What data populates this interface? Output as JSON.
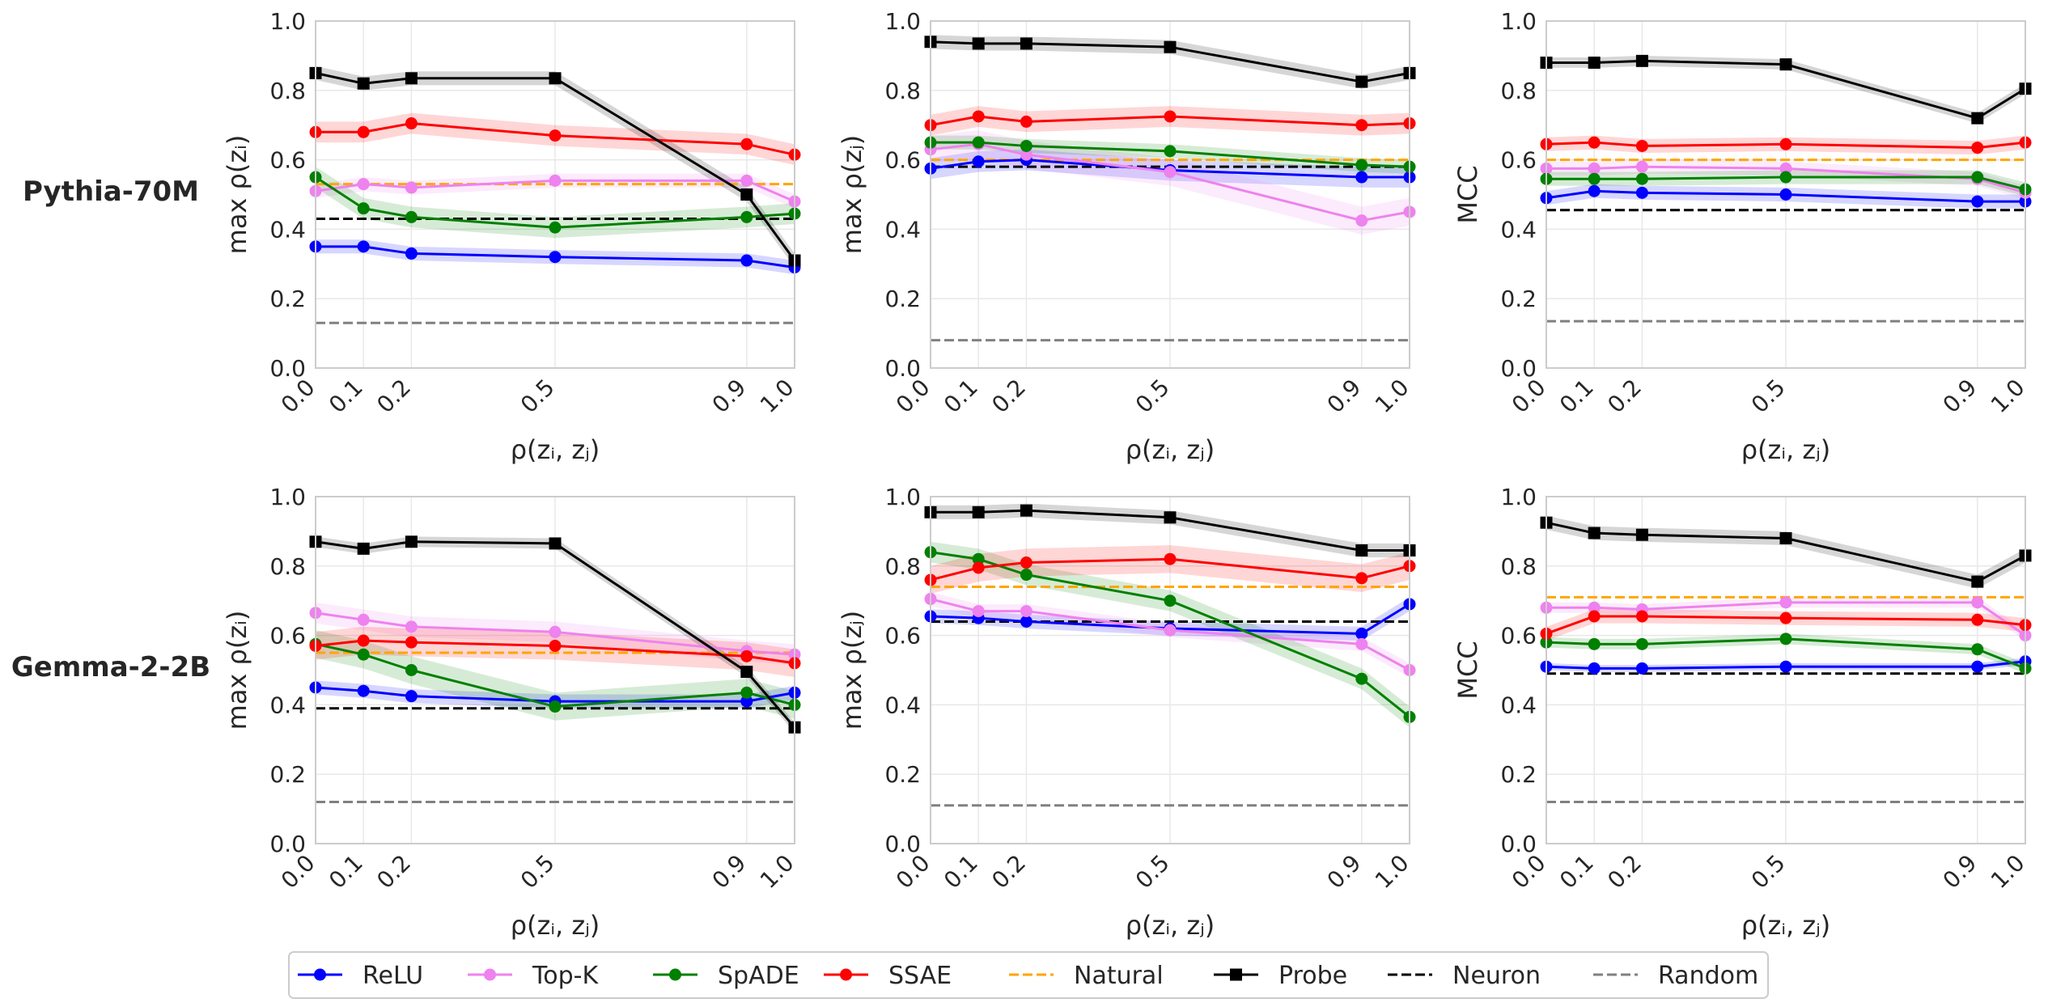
{
  "row_labels": [
    "Pythia-70M",
    "Gemma-2-2B"
  ],
  "legend": [
    {
      "name": "ReLU",
      "color": "#0000ff",
      "style": "solid",
      "marker": "circle"
    },
    {
      "name": "Top-K",
      "color": "#ee82ee",
      "style": "solid",
      "marker": "circle"
    },
    {
      "name": "SpADE",
      "color": "#008000",
      "style": "solid",
      "marker": "circle"
    },
    {
      "name": "SSAE",
      "color": "#ff0000",
      "style": "solid",
      "marker": "circle"
    },
    {
      "name": "Natural",
      "color": "#ffa500",
      "style": "dashed",
      "marker": "none"
    },
    {
      "name": "Probe",
      "color": "#000000",
      "style": "solid",
      "marker": "square"
    },
    {
      "name": "Neuron",
      "color": "#000000",
      "style": "dashed",
      "marker": "none"
    },
    {
      "name": "Random",
      "color": "#808080",
      "style": "dashed",
      "marker": "none"
    }
  ],
  "chart_data": [
    {
      "type": "line",
      "row": 0,
      "col": 0,
      "ylabel": "max ρ(zᵢ)",
      "xlabel": "ρ(zᵢ, zⱼ)",
      "x": [
        0.0,
        0.1,
        0.2,
        0.5,
        0.9,
        1.0
      ],
      "xticks": [
        "0.0",
        "0.1",
        "0.2",
        "0.5",
        "0.9",
        "1.0"
      ],
      "xlim": [
        0.0,
        1.0
      ],
      "ylim": [
        0.0,
        1.0
      ],
      "yticks": [
        "0.0",
        "0.2",
        "0.4",
        "0.6",
        "0.8",
        "1.0"
      ],
      "series": [
        {
          "name": "ReLU",
          "values": [
            0.35,
            0.35,
            0.33,
            0.32,
            0.31,
            0.29
          ],
          "band": 0.02
        },
        {
          "name": "Top-K",
          "values": [
            0.51,
            0.53,
            0.52,
            0.54,
            0.54,
            0.48
          ],
          "band": 0.02
        },
        {
          "name": "SpADE",
          "values": [
            0.55,
            0.46,
            0.435,
            0.405,
            0.435,
            0.445
          ],
          "band": 0.03
        },
        {
          "name": "SSAE",
          "values": [
            0.68,
            0.68,
            0.705,
            0.67,
            0.645,
            0.615
          ],
          "band": 0.03
        },
        {
          "name": "Probe",
          "values": [
            0.85,
            0.82,
            0.835,
            0.835,
            0.5,
            0.31
          ],
          "band": 0.02
        }
      ],
      "hlines": [
        {
          "name": "Natural",
          "value": 0.53
        },
        {
          "name": "Neuron",
          "value": 0.43
        },
        {
          "name": "Random",
          "value": 0.13
        }
      ]
    },
    {
      "type": "line",
      "row": 0,
      "col": 1,
      "ylabel": "max ρ(zⱼ)",
      "xlabel": "ρ(zᵢ, zⱼ)",
      "x": [
        0.0,
        0.1,
        0.2,
        0.5,
        0.9,
        1.0
      ],
      "xticks": [
        "0.0",
        "0.1",
        "0.2",
        "0.5",
        "0.9",
        "1.0"
      ],
      "xlim": [
        0.0,
        1.0
      ],
      "ylim": [
        0.0,
        1.0
      ],
      "yticks": [
        "0.0",
        "0.2",
        "0.4",
        "0.6",
        "0.8",
        "1.0"
      ],
      "series": [
        {
          "name": "ReLU",
          "values": [
            0.575,
            0.595,
            0.6,
            0.57,
            0.55,
            0.55
          ],
          "band": 0.03
        },
        {
          "name": "Top-K",
          "values": [
            0.63,
            0.645,
            0.615,
            0.565,
            0.425,
            0.45
          ],
          "band": 0.04
        },
        {
          "name": "SpADE",
          "values": [
            0.65,
            0.65,
            0.64,
            0.625,
            0.585,
            0.58
          ],
          "band": 0.02
        },
        {
          "name": "SSAE",
          "values": [
            0.7,
            0.725,
            0.71,
            0.725,
            0.7,
            0.705
          ],
          "band": 0.03
        },
        {
          "name": "Probe",
          "values": [
            0.94,
            0.935,
            0.935,
            0.925,
            0.825,
            0.85
          ],
          "band": 0.02
        }
      ],
      "hlines": [
        {
          "name": "Natural",
          "value": 0.6
        },
        {
          "name": "Neuron",
          "value": 0.58
        },
        {
          "name": "Random",
          "value": 0.08
        }
      ]
    },
    {
      "type": "line",
      "row": 0,
      "col": 2,
      "ylabel": "MCC",
      "xlabel": "ρ(zᵢ, zⱼ)",
      "x": [
        0.0,
        0.1,
        0.2,
        0.5,
        0.9,
        1.0
      ],
      "xticks": [
        "0.0",
        "0.1",
        "0.2",
        "0.5",
        "0.9",
        "1.0"
      ],
      "xlim": [
        0.0,
        1.0
      ],
      "ylim": [
        0.0,
        1.0
      ],
      "yticks": [
        "0.0",
        "0.2",
        "0.4",
        "0.6",
        "0.8",
        "1.0"
      ],
      "series": [
        {
          "name": "ReLU",
          "values": [
            0.49,
            0.51,
            0.505,
            0.5,
            0.48,
            0.48
          ],
          "band": 0.02
        },
        {
          "name": "Top-K",
          "values": [
            0.575,
            0.575,
            0.58,
            0.575,
            0.545,
            0.505
          ],
          "band": 0.02
        },
        {
          "name": "SpADE",
          "values": [
            0.545,
            0.545,
            0.545,
            0.55,
            0.55,
            0.515
          ],
          "band": 0.02
        },
        {
          "name": "SSAE",
          "values": [
            0.645,
            0.65,
            0.64,
            0.645,
            0.635,
            0.65
          ],
          "band": 0.02
        },
        {
          "name": "Probe",
          "values": [
            0.88,
            0.88,
            0.885,
            0.875,
            0.72,
            0.805
          ],
          "band": 0.015
        }
      ],
      "hlines": [
        {
          "name": "Natural",
          "value": 0.6
        },
        {
          "name": "Neuron",
          "value": 0.455
        },
        {
          "name": "Random",
          "value": 0.135
        }
      ]
    },
    {
      "type": "line",
      "row": 1,
      "col": 0,
      "ylabel": "max ρ(zᵢ)",
      "xlabel": "ρ(zᵢ, zⱼ)",
      "x": [
        0.0,
        0.1,
        0.2,
        0.5,
        0.9,
        1.0
      ],
      "xticks": [
        "0.0",
        "0.1",
        "0.2",
        "0.5",
        "0.9",
        "1.0"
      ],
      "xlim": [
        0.0,
        1.0
      ],
      "ylim": [
        0.0,
        1.0
      ],
      "yticks": [
        "0.0",
        "0.2",
        "0.4",
        "0.6",
        "0.8",
        "1.0"
      ],
      "series": [
        {
          "name": "ReLU",
          "values": [
            0.45,
            0.44,
            0.425,
            0.41,
            0.41,
            0.435
          ],
          "band": 0.02
        },
        {
          "name": "Top-K",
          "values": [
            0.665,
            0.645,
            0.625,
            0.61,
            0.555,
            0.545
          ],
          "band": 0.03
        },
        {
          "name": "SpADE",
          "values": [
            0.575,
            0.545,
            0.5,
            0.395,
            0.435,
            0.4
          ],
          "band": 0.04
        },
        {
          "name": "SSAE",
          "values": [
            0.57,
            0.585,
            0.58,
            0.57,
            0.54,
            0.52
          ],
          "band": 0.04
        },
        {
          "name": "Probe",
          "values": [
            0.87,
            0.85,
            0.87,
            0.865,
            0.495,
            0.335
          ],
          "band": 0.015
        }
      ],
      "hlines": [
        {
          "name": "Natural",
          "value": 0.55
        },
        {
          "name": "Neuron",
          "value": 0.39
        },
        {
          "name": "Random",
          "value": 0.12
        }
      ]
    },
    {
      "type": "line",
      "row": 1,
      "col": 1,
      "ylabel": "max ρ(zⱼ)",
      "xlabel": "ρ(zᵢ, zⱼ)",
      "x": [
        0.0,
        0.1,
        0.2,
        0.5,
        0.9,
        1.0
      ],
      "xticks": [
        "0.0",
        "0.1",
        "0.2",
        "0.5",
        "0.9",
        "1.0"
      ],
      "xlim": [
        0.0,
        1.0
      ],
      "ylim": [
        0.0,
        1.0
      ],
      "yticks": [
        "0.0",
        "0.2",
        "0.4",
        "0.6",
        "0.8",
        "1.0"
      ],
      "series": [
        {
          "name": "ReLU",
          "values": [
            0.655,
            0.65,
            0.64,
            0.62,
            0.605,
            0.69
          ],
          "band": 0.02
        },
        {
          "name": "Top-K",
          "values": [
            0.705,
            0.67,
            0.67,
            0.615,
            0.575,
            0.5
          ],
          "band": 0.02
        },
        {
          "name": "SpADE",
          "values": [
            0.84,
            0.82,
            0.775,
            0.7,
            0.475,
            0.365
          ],
          "band": 0.03
        },
        {
          "name": "SSAE",
          "values": [
            0.76,
            0.795,
            0.81,
            0.82,
            0.765,
            0.8
          ],
          "band": 0.04
        },
        {
          "name": "Probe",
          "values": [
            0.955,
            0.955,
            0.96,
            0.94,
            0.845,
            0.845
          ],
          "band": 0.02
        }
      ],
      "hlines": [
        {
          "name": "Natural",
          "value": 0.74
        },
        {
          "name": "Neuron",
          "value": 0.64
        },
        {
          "name": "Random",
          "value": 0.11
        }
      ]
    },
    {
      "type": "line",
      "row": 1,
      "col": 2,
      "ylabel": "MCC",
      "xlabel": "ρ(zᵢ, zⱼ)",
      "x": [
        0.0,
        0.1,
        0.2,
        0.5,
        0.9,
        1.0
      ],
      "xticks": [
        "0.0",
        "0.1",
        "0.2",
        "0.5",
        "0.9",
        "1.0"
      ],
      "xlim": [
        0.0,
        1.0
      ],
      "ylim": [
        0.0,
        1.0
      ],
      "yticks": [
        "0.0",
        "0.2",
        "0.4",
        "0.6",
        "0.8",
        "1.0"
      ],
      "series": [
        {
          "name": "ReLU",
          "values": [
            0.51,
            0.505,
            0.505,
            0.51,
            0.51,
            0.525
          ],
          "band": 0.01
        },
        {
          "name": "Top-K",
          "values": [
            0.68,
            0.68,
            0.675,
            0.695,
            0.695,
            0.6
          ],
          "band": 0.015
        },
        {
          "name": "SpADE",
          "values": [
            0.58,
            0.575,
            0.575,
            0.59,
            0.56,
            0.505
          ],
          "band": 0.015
        },
        {
          "name": "SSAE",
          "values": [
            0.605,
            0.655,
            0.655,
            0.65,
            0.645,
            0.63
          ],
          "band": 0.02
        },
        {
          "name": "Probe",
          "values": [
            0.925,
            0.895,
            0.89,
            0.88,
            0.755,
            0.83
          ],
          "band": 0.02
        }
      ],
      "hlines": [
        {
          "name": "Natural",
          "value": 0.71
        },
        {
          "name": "Neuron",
          "value": 0.49
        },
        {
          "name": "Random",
          "value": 0.12
        }
      ]
    }
  ]
}
